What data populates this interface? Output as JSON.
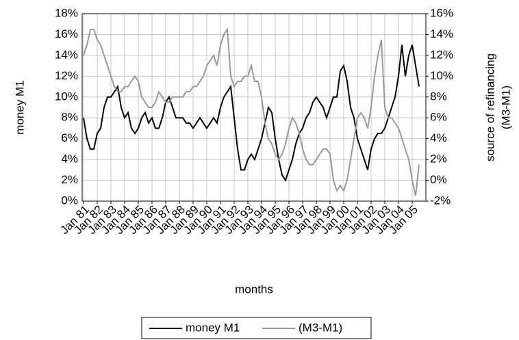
{
  "chart_data": {
    "type": "line",
    "x_label": "months",
    "y_label": "money M1",
    "y2_label": [
      "source of refinancing",
      "(M3-M1)"
    ],
    "categories": [
      "Jan 81",
      null,
      null,
      null,
      "Jan 82",
      null,
      null,
      null,
      "Jan 83",
      null,
      null,
      null,
      "Jan 84",
      null,
      null,
      null,
      "Jan 85",
      null,
      null,
      null,
      "Jan 86",
      null,
      null,
      null,
      "Jan 87",
      null,
      null,
      null,
      "Jan 88",
      null,
      null,
      null,
      "Jan 89",
      null,
      null,
      null,
      "Jan 90",
      null,
      null,
      null,
      "Jan 91",
      null,
      null,
      null,
      "Jan 92",
      null,
      null,
      null,
      "Jan 93",
      null,
      null,
      null,
      "Jan 94",
      null,
      null,
      null,
      "Jan 95",
      null,
      null,
      null,
      "Jan 96",
      null,
      null,
      null,
      "Jan 97",
      null,
      null,
      null,
      "Jan 98",
      null,
      null,
      null,
      "Jan 99",
      null,
      null,
      null,
      "Jan 00",
      null,
      null,
      null,
      "Jan 01",
      null,
      null,
      null,
      "Jan 02",
      null,
      null,
      null,
      "Jan 03",
      null,
      null,
      null,
      "Jan 04",
      null,
      null,
      null,
      "Jan 05",
      null,
      null
    ],
    "series": [
      {
        "name": "money M1",
        "color": "#000000",
        "axis": "y",
        "values": [
          8,
          6,
          5,
          5,
          6.5,
          7,
          9,
          10,
          10,
          10.5,
          11,
          9,
          8,
          8.5,
          7,
          6.5,
          7,
          8,
          8.5,
          7.5,
          8,
          7,
          7,
          8,
          9.5,
          10,
          9,
          8,
          8,
          8,
          7.5,
          7.5,
          7,
          7.5,
          8,
          7.5,
          7,
          7.5,
          8,
          7.5,
          9,
          10,
          10.5,
          11,
          8,
          5,
          3,
          3,
          4,
          4.5,
          4,
          5,
          6,
          7.5,
          9,
          8.5,
          6,
          4,
          2.5,
          2,
          3,
          4,
          5.5,
          6.5,
          7,
          8,
          8.5,
          9.5,
          10,
          9.5,
          9,
          8,
          9,
          10,
          10,
          12.5,
          13,
          11.5,
          9,
          8,
          6,
          5,
          4,
          3,
          5,
          6,
          6.5,
          6.5,
          7,
          8,
          9,
          10,
          12,
          15,
          12,
          14,
          15,
          13,
          11
        ]
      },
      {
        "name": "(M3-M1)",
        "color": "#999999",
        "axis": "y2",
        "values": [
          12,
          13,
          14.5,
          14.5,
          13.5,
          13,
          12,
          11,
          10,
          9,
          8.5,
          8.5,
          9,
          9,
          9.5,
          10,
          9.5,
          8,
          7.5,
          7,
          7,
          7.5,
          8.5,
          8,
          7.5,
          7.5,
          8,
          8,
          8,
          8,
          8.5,
          8.5,
          9,
          9,
          9.5,
          10,
          11,
          11.5,
          12,
          11,
          13,
          14,
          14.5,
          10,
          9,
          9.5,
          9.5,
          10,
          10,
          11,
          9.5,
          9.5,
          8,
          5.5,
          4,
          3.5,
          2.5,
          2,
          2.5,
          3.5,
          5,
          6,
          5.5,
          4.5,
          3,
          2,
          1.5,
          1.5,
          2,
          2.5,
          3,
          3,
          2.5,
          0,
          -1,
          -0.5,
          -1,
          0,
          2,
          4,
          6,
          6.5,
          6,
          5,
          7,
          10,
          12,
          13.5,
          7,
          6,
          6,
          5.5,
          5,
          4,
          3,
          2,
          0,
          -1.5,
          1.5
        ]
      }
    ],
    "ylim": [
      0,
      18
    ],
    "yticks": [
      {
        "value": 0,
        "label": "0%"
      },
      {
        "value": 2,
        "label": "2%"
      },
      {
        "value": 4,
        "label": "4%"
      },
      {
        "value": 6,
        "label": "6%"
      },
      {
        "value": 8,
        "label": "8%"
      },
      {
        "value": 10,
        "label": "10%"
      },
      {
        "value": 12,
        "label": "12%"
      },
      {
        "value": 14,
        "label": "14%"
      },
      {
        "value": 16,
        "label": "16%"
      },
      {
        "value": 18,
        "label": "18%"
      }
    ],
    "y2lim": [
      -2,
      16
    ],
    "y2ticks": [
      {
        "value": -2,
        "label": "-2%"
      },
      {
        "value": 0,
        "label": "0%"
      },
      {
        "value": 2,
        "label": "2%"
      },
      {
        "value": 4,
        "label": "4%"
      },
      {
        "value": 6,
        "label": "6%"
      },
      {
        "value": 8,
        "label": "8%"
      },
      {
        "value": 10,
        "label": "10%"
      },
      {
        "value": 12,
        "label": "12%"
      },
      {
        "value": 14,
        "label": "14%"
      },
      {
        "value": 16,
        "label": "16%"
      }
    ],
    "grid": true,
    "legend": "bottom"
  }
}
